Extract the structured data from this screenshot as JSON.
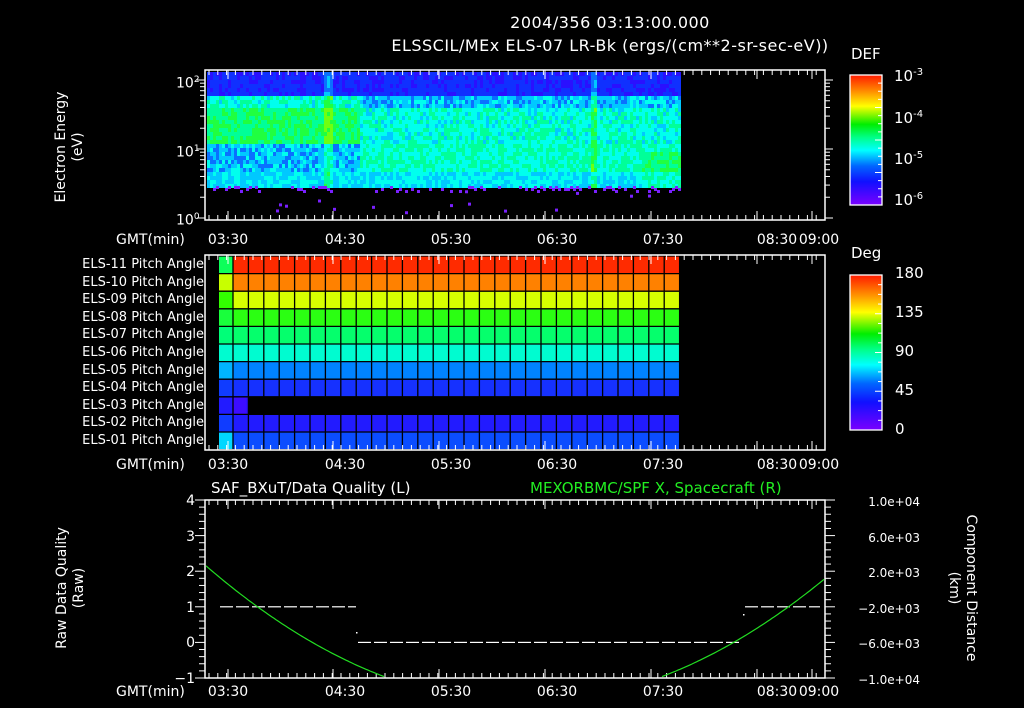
{
  "header": {
    "datetime": "2004/356 03:13:00.000",
    "title": "ELSSCIL/MEx ELS-07 LR-Bk  (ergs/(cm**2-sr-sec-eV))"
  },
  "time_axis": {
    "label": "GMT(min)",
    "ticks": [
      "03:30",
      "04:30",
      "05:30",
      "06:30",
      "07:30",
      "08:30",
      "09:00"
    ]
  },
  "colors": {
    "background": "#000000",
    "foreground": "#ffffff",
    "right_axis_title": "#22ee22",
    "position_trace": "#22dd22",
    "quality_trace": "#ffffff"
  },
  "chart_data": [
    {
      "type": "heatmap",
      "title": "ELSSCIL/MEx ELS-07 LR-Bk  (ergs/(cm**2-sr-sec-eV))",
      "ylabel": "Electron Energy (eV)",
      "xlabel": "GMT(min)",
      "yscale": "log",
      "ylim": [
        1,
        150
      ],
      "yticks": [
        "10^0",
        "10^1",
        "10^2"
      ],
      "xticks": [
        "03:30",
        "04:30",
        "05:30",
        "06:30",
        "07:30",
        "08:30",
        "09:00"
      ],
      "data_time_range": [
        "03:13",
        "07:42"
      ],
      "colorbar": {
        "label": "DEF",
        "scale": "log",
        "range": [
          1e-06,
          0.001
        ],
        "ticks": [
          "10^-3",
          "10^-4",
          "10^-5",
          "10^-6"
        ]
      },
      "description": "Spectrogram with peak flux (green, ~1e-4) at 10-60 eV before 04:45; cyan/blue (~1e-5) after; lower cutoff ~4 eV with sparse purple points below"
    },
    {
      "type": "heatmap",
      "title": "Pitch Angle",
      "rows": [
        "ELS-11 Pitch Angle",
        "ELS-10 Pitch Angle",
        "ELS-09 Pitch Angle",
        "ELS-08 Pitch Angle",
        "ELS-07 Pitch Angle",
        "ELS-06 Pitch Angle",
        "ELS-05 Pitch Angle",
        "ELS-04 Pitch Angle",
        "ELS-03 Pitch Angle",
        "ELS-02 Pitch Angle",
        "ELS-01 Pitch Angle"
      ],
      "values_deg": [
        172,
        157,
        137,
        112,
        97,
        82,
        58,
        35,
        18,
        25,
        45
      ],
      "xticks": [
        "03:30",
        "04:30",
        "05:30",
        "06:30",
        "07:30",
        "08:30",
        "09:00"
      ],
      "data_time_range": [
        "03:13",
        "07:42"
      ],
      "colorbar": {
        "label": "Deg",
        "range": [
          0,
          180
        ],
        "ticks": [
          "180",
          "135",
          "90",
          "45",
          "0"
        ]
      }
    },
    {
      "type": "line",
      "title_left": "SAF_BXuT/Data Quality (L)",
      "title_right": "MEXORBMC/SPF X, Spacecraft (R)",
      "ylabel_left": "Raw Data Quality (Raw)",
      "ylabel_right": "Component Distance (km)",
      "xlabel": "GMT(min)",
      "ylim_left": [
        -1,
        4
      ],
      "yticks_left": [
        "4",
        "3",
        "2",
        "1",
        "0",
        "-1"
      ],
      "ylim_right": [
        -10000,
        10000
      ],
      "yticks_right": [
        "1.0e+04",
        "6.0e+03",
        "2.0e+03",
        "-2.0e+03",
        "-6.0e+03",
        "-1.0e+04"
      ],
      "xticks": [
        "03:30",
        "04:30",
        "05:30",
        "06:30",
        "07:30",
        "08:30",
        "09:00"
      ],
      "series": [
        {
          "name": "Data Quality (L)",
          "axis": "left",
          "segments": [
            {
              "x": [
                "03:13",
                "04:43"
              ],
              "y": 1
            },
            {
              "x": [
                "04:45",
                "08:10"
              ],
              "y": 0
            },
            {
              "x": [
                "08:13",
                "09:00"
              ],
              "y": 1
            }
          ]
        },
        {
          "name": "SPF X, Spacecraft (R)",
          "axis": "right",
          "x": [
            "03:13",
            "03:30",
            "04:00",
            "04:30",
            "04:55",
            "07:25",
            "07:45",
            "08:15",
            "08:45",
            "09:00"
          ],
          "y": [
            2700,
            0,
            -4000,
            -7600,
            -10000,
            -10000,
            -8000,
            -3600,
            1600,
            2700
          ]
        }
      ]
    }
  ],
  "panel1": {
    "ylabel_line1": "Electron Energy",
    "ylabel_line2": "(eV)",
    "yticks": [
      {
        "base": "10",
        "exp": "2"
      },
      {
        "base": "10",
        "exp": "1"
      },
      {
        "base": "10",
        "exp": "0"
      }
    ],
    "colorbar_label": "DEF",
    "colorbar_ticks": [
      {
        "base": "10",
        "exp": "-3"
      },
      {
        "base": "10",
        "exp": "-4"
      },
      {
        "base": "10",
        "exp": "-5"
      },
      {
        "base": "10",
        "exp": "-6"
      }
    ]
  },
  "panel2": {
    "rows": [
      "ELS-11 Pitch Angle",
      "ELS-10 Pitch Angle",
      "ELS-09 Pitch Angle",
      "ELS-08 Pitch Angle",
      "ELS-07 Pitch Angle",
      "ELS-06 Pitch Angle",
      "ELS-05 Pitch Angle",
      "ELS-04 Pitch Angle",
      "ELS-03 Pitch Angle",
      "ELS-02 Pitch Angle",
      "ELS-01 Pitch Angle"
    ],
    "colorbar_label": "Deg",
    "colorbar_ticks": [
      "180",
      "135",
      "90",
      "45",
      "0"
    ]
  },
  "panel3": {
    "title_left": "SAF_BXuT/Data Quality (L)",
    "title_right": "MEXORBMC/SPF X, Spacecraft (R)",
    "ylabel_left_line1": "Raw Data Quality",
    "ylabel_left_line2": "(Raw)",
    "ylabel_right_line1": "Component Distance",
    "ylabel_right_line2": "(km)",
    "yticks_left": [
      "4",
      "3",
      "2",
      "1",
      "0",
      "−1"
    ],
    "yticks_right": [
      "1.0e+04",
      "6.0e+03",
      "2.0e+03",
      "−2.0e+03",
      "−6.0e+03",
      "−1.0e+04"
    ]
  }
}
